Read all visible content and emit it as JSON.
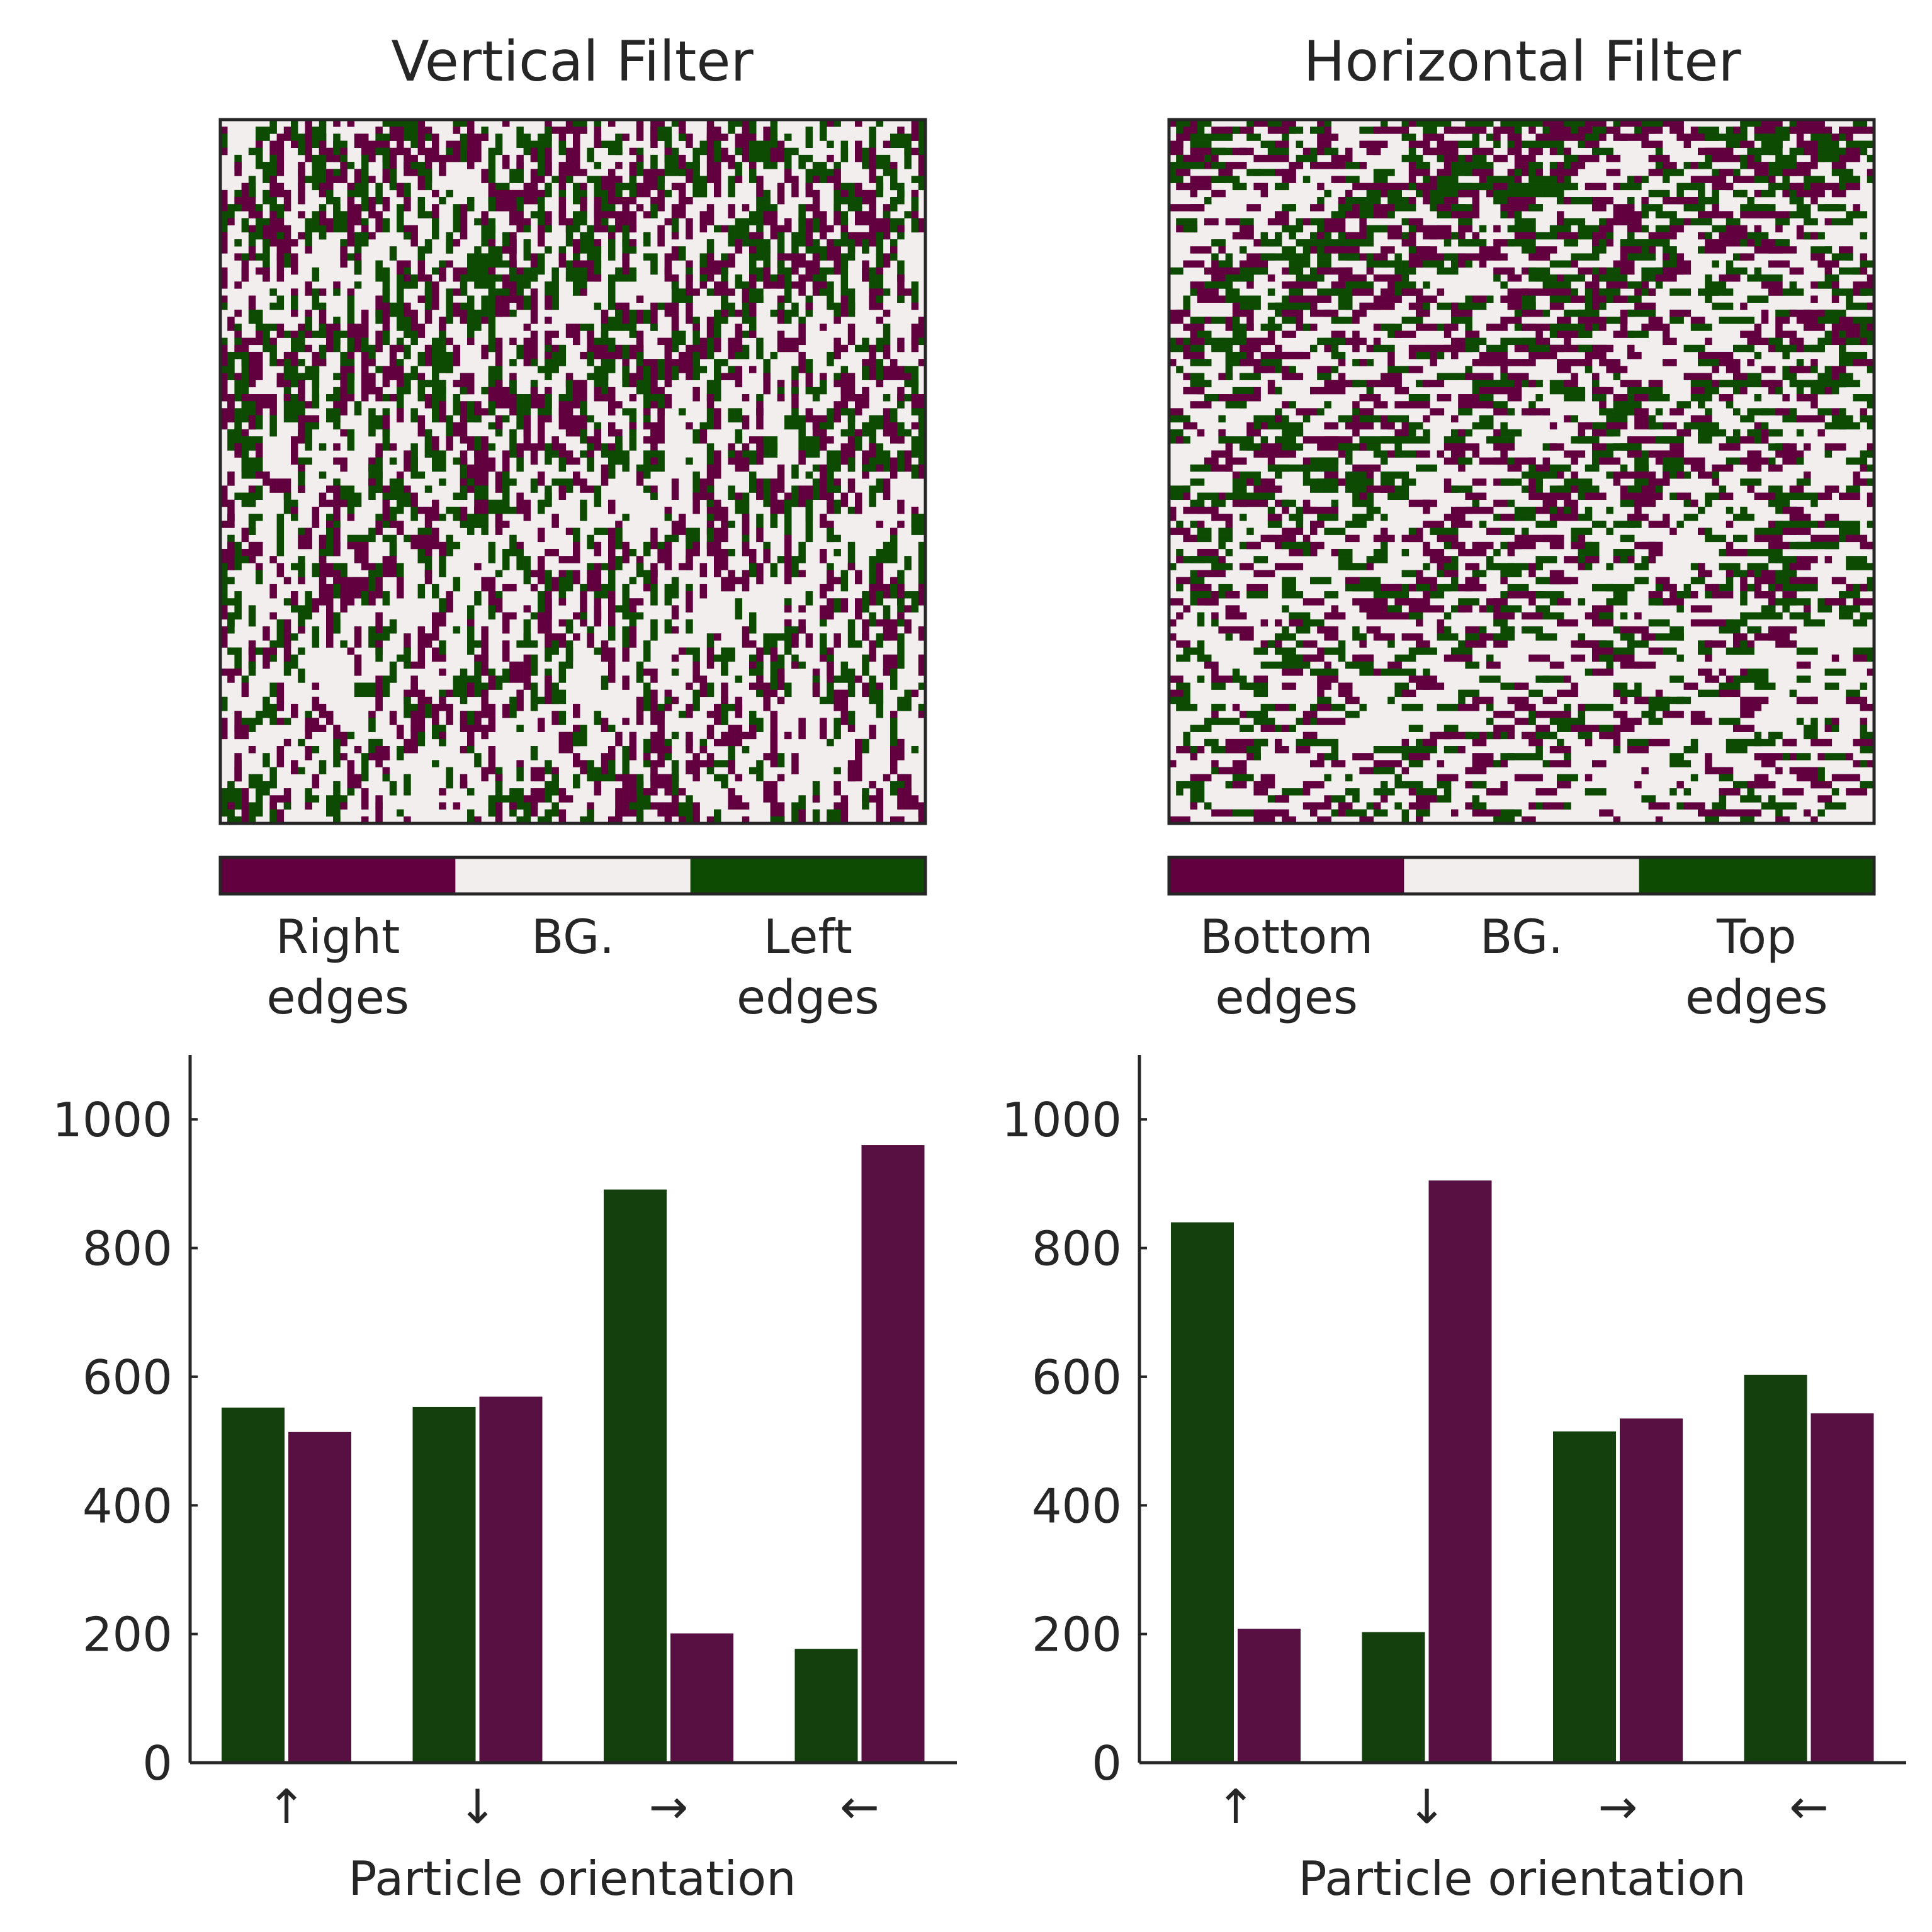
{
  "colors": {
    "green": "#0d4a02",
    "purple": "#62003f",
    "background": "#f3eeee",
    "bar_green": "#13400c",
    "bar_purple": "#580f42",
    "frame": "#262626"
  },
  "heatmaps": [
    {
      "title": "Vertical Filter",
      "grid": {
        "cells": 100,
        "density_top": 0.34,
        "density_bottom": 0.18,
        "orientation": "vertical",
        "seed": 17
      },
      "colorbar": [
        {
          "line1": "Right",
          "line2": "edges",
          "color": "#62003f"
        },
        {
          "line1": "BG.",
          "line2": "",
          "color": "#f3eeee"
        },
        {
          "line1": "Left",
          "line2": "edges",
          "color": "#0d4a02"
        }
      ]
    },
    {
      "title": "Horizontal Filter",
      "grid": {
        "cells": 100,
        "density_top": 0.34,
        "density_bottom": 0.18,
        "orientation": "horizontal",
        "seed": 91
      },
      "colorbar": [
        {
          "line1": "Bottom",
          "line2": "edges",
          "color": "#62003f"
        },
        {
          "line1": "BG.",
          "line2": "",
          "color": "#f3eeee"
        },
        {
          "line1": "Top",
          "line2": "edges",
          "color": "#0d4a02"
        }
      ]
    }
  ],
  "chart_data": [
    {
      "type": "bar",
      "xlabel": "Particle orientation",
      "ylabel": "",
      "ylim": [
        0,
        1100
      ],
      "yticks": [
        0,
        200,
        400,
        600,
        800,
        1000
      ],
      "categories": [
        "↑",
        "↓",
        "→",
        "←"
      ],
      "series": [
        {
          "color": "#13400c",
          "values": [
            552,
            553,
            891,
            177
          ]
        },
        {
          "color": "#580f42",
          "values": [
            514,
            569,
            201,
            960
          ]
        }
      ]
    },
    {
      "type": "bar",
      "xlabel": "Particle orientation",
      "ylabel": "",
      "ylim": [
        0,
        1100
      ],
      "yticks": [
        0,
        200,
        400,
        600,
        800,
        1000
      ],
      "categories": [
        "↑",
        "↓",
        "→",
        "←"
      ],
      "series": [
        {
          "color": "#13400c",
          "values": [
            840,
            203,
            515,
            603
          ]
        },
        {
          "color": "#580f42",
          "values": [
            208,
            905,
            535,
            543
          ]
        }
      ]
    }
  ]
}
